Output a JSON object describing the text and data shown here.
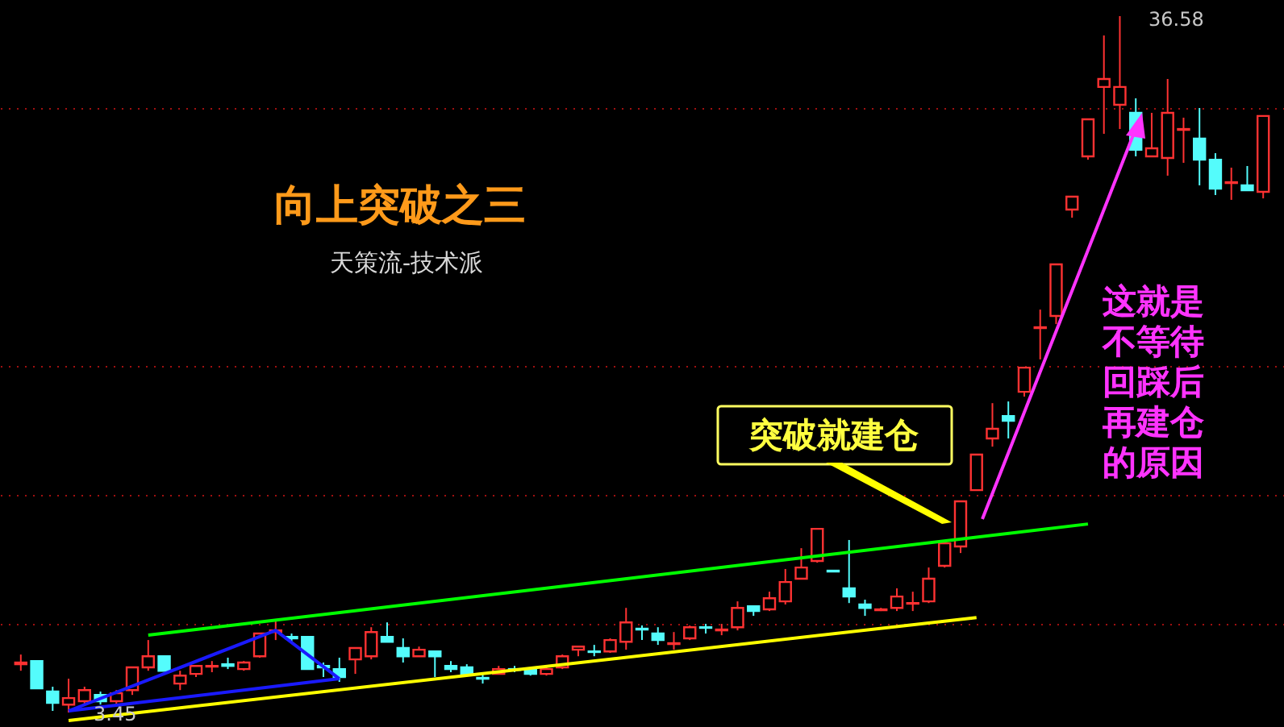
{
  "chart_data": {
    "type": "candlestick",
    "title": "向上突破之三",
    "subtitle": "天策流-技术派",
    "categories": [
      null,
      null,
      null,
      null,
      null,
      null,
      null,
      null,
      null,
      null,
      null,
      null,
      null,
      null,
      null,
      null,
      null,
      null,
      null,
      null,
      null,
      null,
      null,
      null,
      null,
      null,
      null,
      null,
      null,
      null,
      null,
      null,
      null,
      null,
      null,
      null,
      null,
      null,
      null,
      null,
      null,
      null,
      null,
      null,
      null,
      null,
      null,
      null,
      null,
      null,
      null,
      null,
      null,
      null,
      null,
      null,
      null,
      null,
      null,
      null,
      null,
      null,
      null,
      null,
      null,
      null,
      null,
      null,
      null,
      null,
      null,
      null,
      null,
      null,
      null,
      null,
      null,
      null,
      null
    ],
    "ohlc": [
      [
        5.75,
        6.21,
        5.44,
        5.83
      ],
      [
        5.9,
        5.9,
        4.6,
        4.6
      ],
      [
        4.45,
        4.68,
        3.53,
        3.91
      ],
      [
        3.83,
        5.06,
        3.45,
        4.14
      ],
      [
        3.99,
        4.68,
        3.83,
        4.52
      ],
      [
        4.29,
        4.45,
        3.83,
        3.99
      ],
      [
        3.99,
        4.52,
        3.83,
        4.37
      ],
      [
        4.52,
        5.6,
        4.29,
        5.6
      ],
      [
        5.6,
        6.9,
        5.44,
        6.13
      ],
      [
        6.13,
        6.13,
        5.44,
        5.44
      ],
      [
        4.83,
        5.44,
        4.52,
        5.21
      ],
      [
        5.29,
        5.67,
        5.14,
        5.67
      ],
      [
        5.64,
        5.9,
        5.37,
        5.67
      ],
      [
        5.75,
        6.06,
        5.52,
        5.67
      ],
      [
        5.52,
        5.9,
        5.44,
        5.83
      ],
      [
        6.13,
        7.21,
        6.06,
        7.21
      ],
      [
        7.28,
        7.82,
        6.9,
        7.36
      ],
      [
        7.05,
        7.21,
        6.82,
        6.98
      ],
      [
        7.05,
        7.05,
        5.52,
        5.52
      ],
      [
        5.67,
        5.83,
        5.14,
        5.6
      ],
      [
        5.52,
        6.06,
        4.91,
        5.14
      ],
      [
        5.98,
        6.52,
        5.29,
        6.52
      ],
      [
        6.13,
        7.51,
        5.98,
        7.28
      ],
      [
        7.05,
        7.74,
        6.82,
        6.82
      ],
      [
        6.52,
        6.98,
        5.83,
        6.13
      ],
      [
        6.13,
        6.59,
        6.13,
        6.44
      ],
      [
        6.36,
        6.36,
        5.14,
        6.13
      ],
      [
        5.67,
        5.9,
        5.37,
        5.52
      ],
      [
        5.6,
        5.75,
        5.29,
        5.29
      ],
      [
        5.1,
        5.29,
        4.83,
        5.06
      ],
      [
        5.29,
        5.67,
        5.29,
        5.52
      ],
      [
        5.52,
        5.67,
        5.37,
        5.48
      ],
      [
        5.52,
        5.6,
        5.21,
        5.29
      ],
      [
        5.29,
        5.6,
        5.21,
        5.52
      ],
      [
        5.6,
        6.21,
        5.52,
        6.13
      ],
      [
        6.44,
        6.59,
        6.13,
        6.59
      ],
      [
        6.36,
        6.67,
        6.13,
        6.33
      ],
      [
        6.36,
        6.98,
        6.29,
        6.9
      ],
      [
        6.82,
        8.43,
        6.44,
        7.74
      ],
      [
        7.44,
        7.59,
        6.9,
        7.4
      ],
      [
        7.21,
        7.51,
        6.67,
        6.9
      ],
      [
        6.71,
        7.28,
        6.44,
        6.75
      ],
      [
        6.98,
        7.59,
        6.9,
        7.51
      ],
      [
        7.51,
        7.67,
        7.21,
        7.48
      ],
      [
        7.36,
        7.67,
        7.13,
        7.4
      ],
      [
        7.51,
        8.74,
        7.36,
        8.43
      ],
      [
        8.51,
        8.51,
        8.05,
        8.28
      ],
      [
        8.36,
        9.2,
        8.28,
        8.89
      ],
      [
        8.74,
        10.28,
        8.59,
        9.66
      ],
      [
        9.82,
        11.27,
        9.82,
        10.35
      ],
      [
        10.66,
        12.19,
        10.58,
        12.19
      ],
      [
        10.2,
        10.2,
        10.16,
        10.16
      ],
      [
        9.36,
        11.66,
        8.66,
        8.97
      ],
      [
        8.59,
        8.82,
        8.05,
        8.43
      ],
      [
        8.32,
        8.43,
        8.28,
        8.36
      ],
      [
        8.43,
        9.36,
        8.28,
        8.97
      ],
      [
        8.63,
        9.2,
        8.28,
        8.66
      ],
      [
        8.74,
        10.35,
        8.66,
        9.82
      ],
      [
        10.43,
        11.5,
        10.35,
        11.5
      ],
      [
        11.35,
        13.5,
        11.04,
        13.5
      ],
      [
        14.03,
        15.72,
        14.03,
        15.72
      ],
      [
        16.49,
        18.17,
        16.1,
        16.95
      ],
      [
        17.56,
        18.25,
        16.49,
        17.33
      ],
      [
        18.71,
        19.86,
        18.48,
        19.86
      ],
      [
        21.74,
        22.62,
        20.25,
        21.78
      ],
      [
        22.32,
        24.77,
        21.93,
        24.77
      ],
      [
        27.38,
        27.99,
        26.99,
        27.99
      ],
      [
        29.91,
        31.67,
        29.75,
        31.67
      ],
      [
        33.21,
        35.66,
        30.98,
        33.59
      ],
      [
        32.36,
        36.58,
        31.21,
        33.21
      ],
      [
        31.98,
        32.67,
        29.91,
        30.22
      ],
      [
        29.91,
        31.98,
        29.91,
        30.29
      ],
      [
        29.83,
        33.59,
        28.99,
        31.98
      ],
      [
        31.17,
        31.75,
        29.6,
        31.21
      ],
      [
        30.75,
        32.21,
        28.53,
        29.75
      ],
      [
        29.75,
        30.06,
        28.07,
        28.37
      ],
      [
        28.64,
        29.37,
        27.84,
        28.68
      ],
      [
        28.53,
        29.45,
        28.3,
        28.3
      ],
      [
        28.22,
        31.83,
        27.91,
        31.83
      ]
    ],
    "colors": [
      "#ff3232",
      "#54fcfc",
      "#54fcfc",
      "#ff3232",
      "#ff3232",
      "#54fcfc",
      "#ff3232",
      "#ff3232",
      "#ff3232",
      "#54fcfc",
      "#ff3232",
      "#ff3232",
      "#ff3232",
      "#54fcfc",
      "#ff3232",
      "#ff3232",
      "#ff3232",
      "#54fcfc",
      "#54fcfc",
      "#54fcfc",
      "#54fcfc",
      "#ff3232",
      "#ff3232",
      "#54fcfc",
      "#54fcfc",
      "#ff3232",
      "#54fcfc",
      "#54fcfc",
      "#54fcfc",
      "#54fcfc",
      "#ff3232",
      "#54fcfc",
      "#54fcfc",
      "#ff3232",
      "#ff3232",
      "#ff3232",
      "#54fcfc",
      "#ff3232",
      "#ff3232",
      "#54fcfc",
      "#54fcfc",
      "#ff3232",
      "#ff3232",
      "#54fcfc",
      "#ff3232",
      "#ff3232",
      "#54fcfc",
      "#ff3232",
      "#ff3232",
      "#ff3232",
      "#ff3232",
      "#54fcfc",
      "#54fcfc",
      "#54fcfc",
      "#ff3232",
      "#ff3232",
      "#ff3232",
      "#ff3232",
      "#ff3232",
      "#ff3232",
      "#ff3232",
      "#ff3232",
      "#54fcfc",
      "#ff3232",
      "#ff3232",
      "#ff3232",
      "#ff3232",
      "#ff3232",
      "#ff3232",
      "#ff3232",
      "#54fcfc",
      "#ff3232",
      "#ff3232",
      "#ff3232",
      "#54fcfc",
      "#54fcfc",
      "#ff3232",
      "#54fcfc",
      "#ff3232"
    ],
    "series": [
      {
        "type": "line",
        "values": [
          null,
          null,
          null,
          null,
          null,
          null,
          null,
          null,
          7.13,
          null,
          null,
          null,
          null,
          null,
          null,
          null,
          null,
          null,
          null,
          null,
          null,
          null,
          null,
          null,
          null,
          null,
          null,
          null,
          null,
          null,
          null,
          null,
          null,
          null,
          null,
          null,
          null,
          null,
          null,
          null,
          null,
          null,
          null,
          null,
          null,
          null,
          null,
          null,
          null,
          null,
          null,
          null,
          null,
          null,
          null,
          null,
          null,
          null,
          null,
          null,
          null,
          null,
          null,
          null,
          null,
          null,
          null,
          12.42,
          null,
          null,
          null,
          null,
          null,
          null,
          null,
          null,
          null,
          null,
          null
        ],
        "color": "#00ff00"
      },
      {
        "type": "line",
        "values": [
          null,
          null,
          null,
          3.07,
          null,
          null,
          null,
          null,
          null,
          null,
          null,
          null,
          null,
          null,
          null,
          null,
          null,
          null,
          null,
          null,
          null,
          null,
          null,
          null,
          null,
          null,
          null,
          null,
          null,
          null,
          null,
          null,
          null,
          null,
          null,
          null,
          null,
          null,
          null,
          null,
          null,
          null,
          null,
          null,
          null,
          null,
          null,
          null,
          null,
          null,
          null,
          null,
          null,
          null,
          null,
          null,
          null,
          null,
          null,
          null,
          7.97,
          null,
          null,
          null,
          null,
          null,
          null,
          null,
          null,
          null,
          null,
          null,
          null,
          null,
          null,
          null,
          null,
          null,
          null
        ],
        "color": "#ffff00"
      },
      {
        "type": "line",
        "values": [
          null,
          null,
          null,
          3.53,
          null,
          null,
          null,
          null,
          null,
          null,
          null,
          null,
          null,
          null,
          null,
          null,
          7.36,
          null,
          null,
          null,
          5.06,
          null,
          null,
          null,
          null,
          null,
          null,
          null,
          null,
          null,
          null,
          null,
          null,
          null,
          null,
          null,
          null,
          null,
          null,
          null,
          null,
          null,
          null,
          null,
          null,
          null,
          null,
          null,
          null,
          null,
          null,
          null,
          null,
          null,
          null,
          null,
          null,
          null,
          null,
          null,
          null,
          null,
          null,
          null,
          null,
          null,
          null,
          null,
          null,
          null,
          null,
          null,
          null,
          null,
          null,
          null,
          null,
          null,
          null
        ],
        "color": "#1a1aff"
      },
      {
        "type": "line",
        "values": [
          null,
          null,
          null,
          3.53,
          null,
          null,
          null,
          null,
          null,
          null,
          null,
          null,
          null,
          null,
          null,
          null,
          null,
          null,
          null,
          null,
          5.06,
          null,
          null,
          null,
          null,
          null,
          null,
          null,
          null,
          null,
          null,
          null,
          null,
          null,
          null,
          null,
          null,
          null,
          null,
          null,
          null,
          null,
          null,
          null,
          null,
          null,
          null,
          null,
          null,
          null,
          null,
          null,
          null,
          null,
          null,
          null,
          null,
          null,
          null,
          null,
          null,
          null,
          null,
          null,
          null,
          null,
          null,
          null,
          null,
          null,
          null,
          null,
          null,
          null,
          null,
          null,
          null,
          null,
          null
        ],
        "color": "#1a1aff"
      }
    ],
    "yticks": [
      {
        "value": 7.67,
        "label": null
      },
      {
        "value": 13.8,
        "label": null
      },
      {
        "value": 19.94,
        "label": null
      },
      {
        "value": 32.21,
        "label": null
      }
    ],
    "grid": "y",
    "annotations": [
      "突破就建仓",
      "这就是不等待回踩后再建仓的原因",
      "36.58",
      "3.45"
    ]
  }
}
